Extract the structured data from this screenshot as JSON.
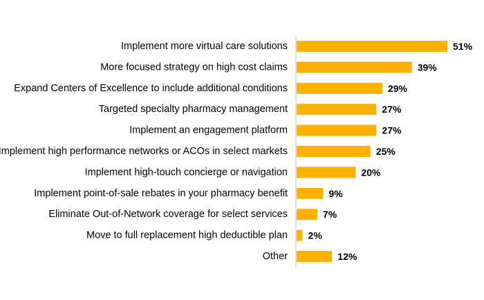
{
  "chart_data": {
    "type": "bar",
    "orientation": "horizontal",
    "categories": [
      "Implement more virtual care solutions ",
      "More focused strategy on high cost claims",
      "Expand Centers of Excellence to include additional conditions",
      "Targeted specialty pharmacy management ",
      "Implement an engagement platform",
      "Implement high performance networks or ACOs in select markets",
      "Implement high-touch concierge or navigation",
      "Implement point-of-sale rebates in your pharmacy benefit",
      "Eliminate Out-of-Network coverage for select services",
      "Move to full replacement high deductible plan",
      "Other"
    ],
    "values": [
      51,
      39,
      29,
      27,
      27,
      25,
      20,
      9,
      7,
      2,
      12
    ],
    "value_labels": [
      "51%",
      "39%",
      "29%",
      "27%",
      "27%",
      "25%",
      "20%",
      "9%",
      "7%",
      "2%",
      "12%"
    ],
    "unit": "%",
    "xlim": [
      0,
      55
    ],
    "grid": false,
    "legend": "none",
    "bar_color": "#FFB000",
    "axis_color": "#BFBFBF"
  }
}
